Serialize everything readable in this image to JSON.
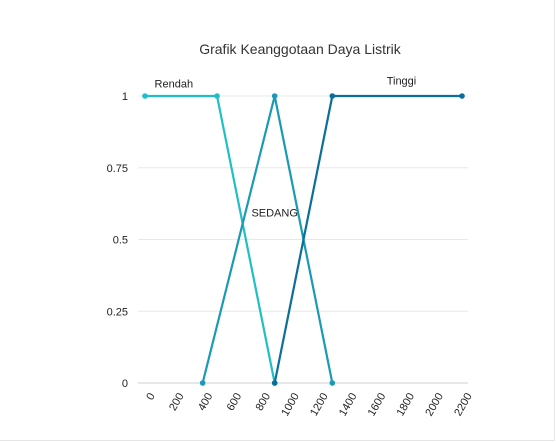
{
  "chart_data": {
    "type": "line",
    "title": "Grafik Keanggotaan Daya Listrik",
    "xlabel": "",
    "ylabel": "",
    "xlim": [
      0,
      2200
    ],
    "ylim": [
      0,
      1
    ],
    "x_ticks": [
      "0",
      "200",
      "400",
      "600",
      "800",
      "1000",
      "1200",
      "1400",
      "1600",
      "1800",
      "2000",
      "2200"
    ],
    "y_ticks": [
      "0",
      "0.25",
      "0.5",
      "0.75",
      "1"
    ],
    "grid": "horizontal",
    "series": [
      {
        "name": "Rendah",
        "color": "#1fbfc6",
        "points": [
          [
            0,
            1
          ],
          [
            500,
            1
          ],
          [
            900,
            0
          ]
        ]
      },
      {
        "name": "SEDANG",
        "color": "#1a9ab5",
        "points": [
          [
            400,
            0
          ],
          [
            900,
            1
          ],
          [
            1300,
            0
          ]
        ]
      },
      {
        "name": "Tinggi",
        "color": "#0b6e9b",
        "points": [
          [
            900,
            0
          ],
          [
            1300,
            1
          ],
          [
            2200,
            1
          ]
        ]
      }
    ],
    "annotations": [
      {
        "text": "Rendah",
        "x": 200,
        "y": 1.03
      },
      {
        "text": "SEDANG",
        "x": 900,
        "y": 0.58
      },
      {
        "text": "Tinggi",
        "x": 1780,
        "y": 1.04
      }
    ]
  }
}
